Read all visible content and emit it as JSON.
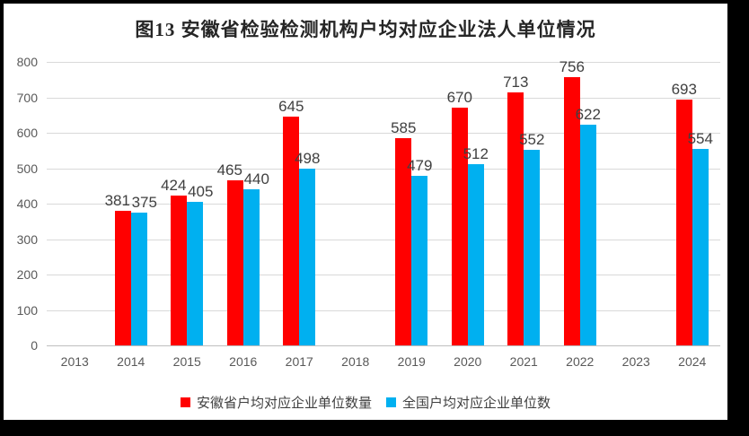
{
  "window": {
    "frame_color": "#000000",
    "canvas_color": "#FFFFFF"
  },
  "chart_data": {
    "type": "bar",
    "title": "图13 安徽省检验检测机构户均对应企业法人单位情况",
    "categories": [
      "2013",
      "2014",
      "2015",
      "2016",
      "2017",
      "2018",
      "2019",
      "2020",
      "2021",
      "2022",
      "2023",
      "2024"
    ],
    "series": [
      {
        "id": "anhui",
        "name": "安徽省户均对应企业单位数量",
        "color": "#FF0000",
        "values": [
          null,
          381,
          424,
          465,
          645,
          null,
          585,
          670,
          713,
          756,
          null,
          693
        ]
      },
      {
        "id": "national",
        "name": "全国户均对应企业单位数",
        "color": "#00B0F0",
        "values": [
          null,
          375,
          405,
          440,
          498,
          null,
          479,
          512,
          552,
          622,
          null,
          554
        ]
      }
    ],
    "xlabel": "",
    "ylabel": "",
    "ylim": [
      0,
      800
    ],
    "ytick_step": 100,
    "grid": true,
    "legend_position": "bottom",
    "colors": {
      "gridline": "#D9D9D9",
      "axis_line": "#BFBFBF",
      "axis_text": "#595959",
      "data_label_text": "#404040",
      "title_text": "#262626",
      "legend_text": "#404040"
    }
  }
}
